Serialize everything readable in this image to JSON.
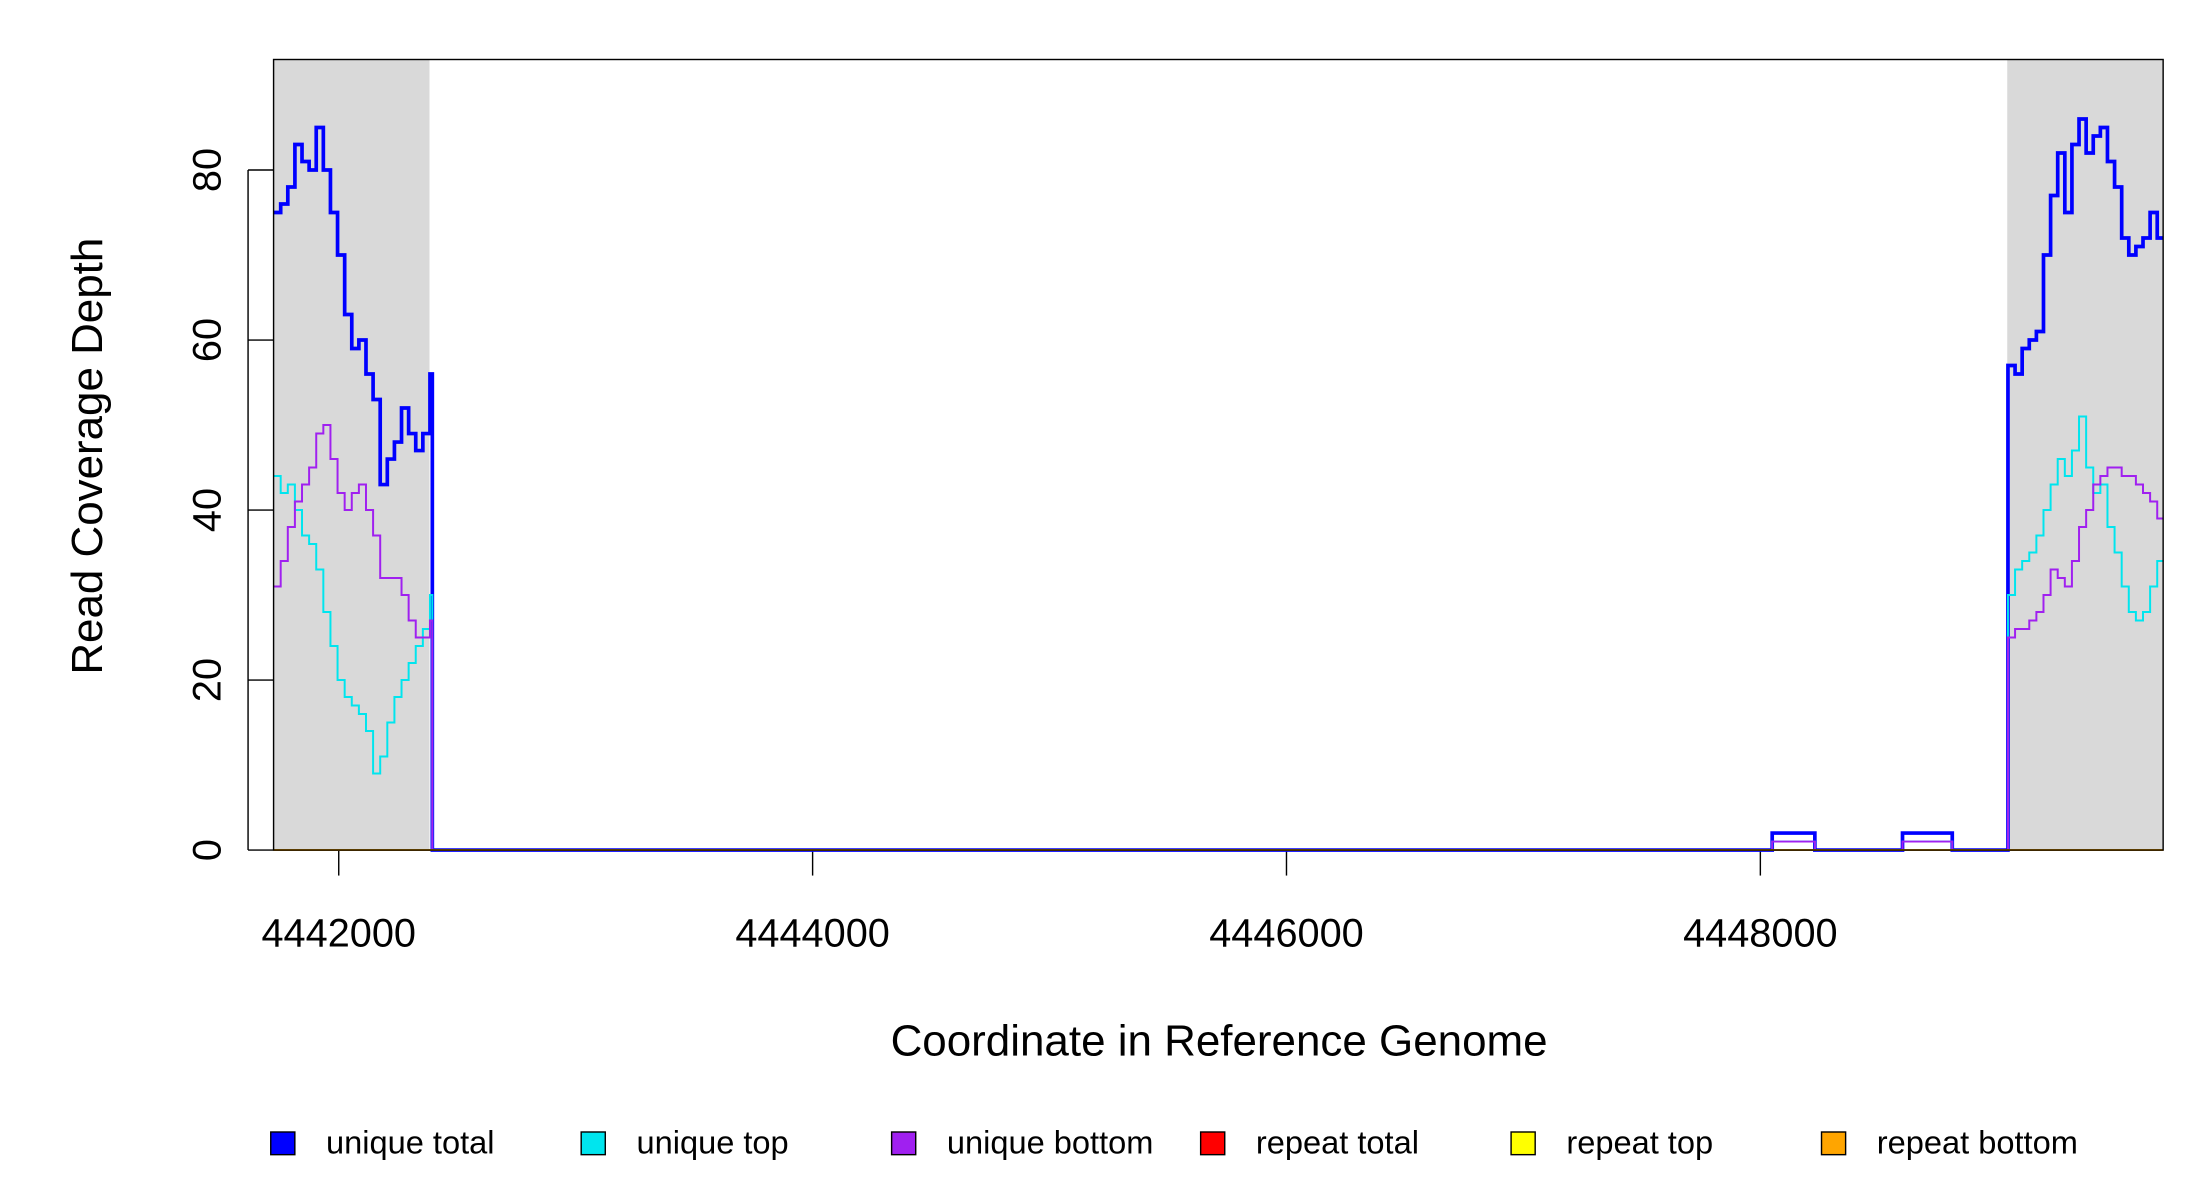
{
  "chart_data": {
    "type": "step",
    "xlabel": "Coordinate in Reference Genome",
    "ylabel": "Read Coverage Depth",
    "xlim": [
      4441725,
      4449700
    ],
    "ylim": [
      0,
      93
    ],
    "xticks": [
      4442000,
      4444000,
      4446000,
      4448000
    ],
    "yticks": [
      0,
      20,
      40,
      60,
      80
    ],
    "shaded_regions": [
      [
        4441725,
        4442383
      ],
      [
        4449042,
        4449700
      ]
    ],
    "shade_color": "#d9d9d9",
    "legend": "bottom",
    "x": [
      4441725,
      4441755,
      4441785,
      4441815,
      4441845,
      4441875,
      4441905,
      4441935,
      4441965,
      4441995,
      4442025,
      4442055,
      4442085,
      4442115,
      4442145,
      4442175,
      4442205,
      4442235,
      4442265,
      4442295,
      4442325,
      4442355,
      4442385,
      4442395,
      4448050,
      4448230,
      4448600,
      4448810,
      4449045,
      4449075,
      4449105,
      4449135,
      4449165,
      4449195,
      4449225,
      4449255,
      4449285,
      4449315,
      4449345,
      4449375,
      4449405,
      4449435,
      4449465,
      4449495,
      4449525,
      4449555,
      4449585,
      4449615,
      4449645,
      4449675
    ],
    "series": [
      {
        "name": "unique total",
        "color": "#0000ff",
        "values": [
          75,
          76,
          78,
          83,
          81,
          80,
          85,
          80,
          75,
          70,
          63,
          59,
          60,
          56,
          53,
          43,
          46,
          48,
          52,
          49,
          47,
          49,
          56,
          0,
          2,
          0,
          2,
          0,
          57,
          56,
          59,
          60,
          61,
          70,
          77,
          82,
          75,
          83,
          86,
          82,
          84,
          85,
          81,
          78,
          72,
          70,
          71,
          72,
          75,
          72
        ]
      },
      {
        "name": "unique top",
        "color": "#00e5ee",
        "values": [
          44,
          42,
          43,
          40,
          37,
          36,
          33,
          28,
          24,
          20,
          18,
          17,
          16,
          14,
          9,
          11,
          15,
          18,
          20,
          22,
          24,
          26,
          30,
          0,
          1,
          0,
          1,
          0,
          30,
          33,
          34,
          35,
          37,
          40,
          43,
          46,
          44,
          47,
          51,
          45,
          42,
          43,
          38,
          35,
          31,
          28,
          27,
          28,
          31,
          34
        ]
      },
      {
        "name": "unique bottom",
        "color": "#a020f0",
        "values": [
          31,
          34,
          38,
          41,
          43,
          45,
          49,
          50,
          46,
          42,
          40,
          42,
          43,
          40,
          37,
          32,
          32,
          32,
          30,
          27,
          25,
          25,
          27,
          0,
          1,
          0,
          1,
          0,
          25,
          26,
          26,
          27,
          28,
          30,
          33,
          32,
          31,
          34,
          38,
          40,
          43,
          44,
          45,
          45,
          44,
          44,
          43,
          42,
          41,
          39
        ]
      },
      {
        "name": "repeat total",
        "color": "#ff0000",
        "values": [
          0,
          0,
          0,
          0,
          0,
          0,
          0,
          0,
          0,
          0,
          0,
          0,
          0,
          0,
          0,
          0,
          0,
          0,
          0,
          0,
          0,
          0,
          0,
          0,
          0,
          0,
          0,
          0,
          0,
          0,
          0,
          0,
          0,
          0,
          0,
          0,
          0,
          0,
          0,
          0,
          0,
          0,
          0,
          0,
          0,
          0,
          0,
          0,
          0,
          0
        ]
      },
      {
        "name": "repeat top",
        "color": "#ffff00",
        "values": [
          0,
          0,
          0,
          0,
          0,
          0,
          0,
          0,
          0,
          0,
          0,
          0,
          0,
          0,
          0,
          0,
          0,
          0,
          0,
          0,
          0,
          0,
          0,
          0,
          0,
          0,
          0,
          0,
          0,
          0,
          0,
          0,
          0,
          0,
          0,
          0,
          0,
          0,
          0,
          0,
          0,
          0,
          0,
          0,
          0,
          0,
          0,
          0,
          0,
          0
        ]
      },
      {
        "name": "repeat bottom",
        "color": "#ffa500",
        "values": [
          0,
          0,
          0,
          0,
          0,
          0,
          0,
          0,
          0,
          0,
          0,
          0,
          0,
          0,
          0,
          0,
          0,
          0,
          0,
          0,
          0,
          0,
          0,
          0,
          0,
          0,
          0,
          0,
          0,
          0,
          0,
          0,
          0,
          0,
          0,
          0,
          0,
          0,
          0,
          0,
          0,
          0,
          0,
          0,
          0,
          0,
          0,
          0,
          0,
          0
        ]
      }
    ]
  }
}
